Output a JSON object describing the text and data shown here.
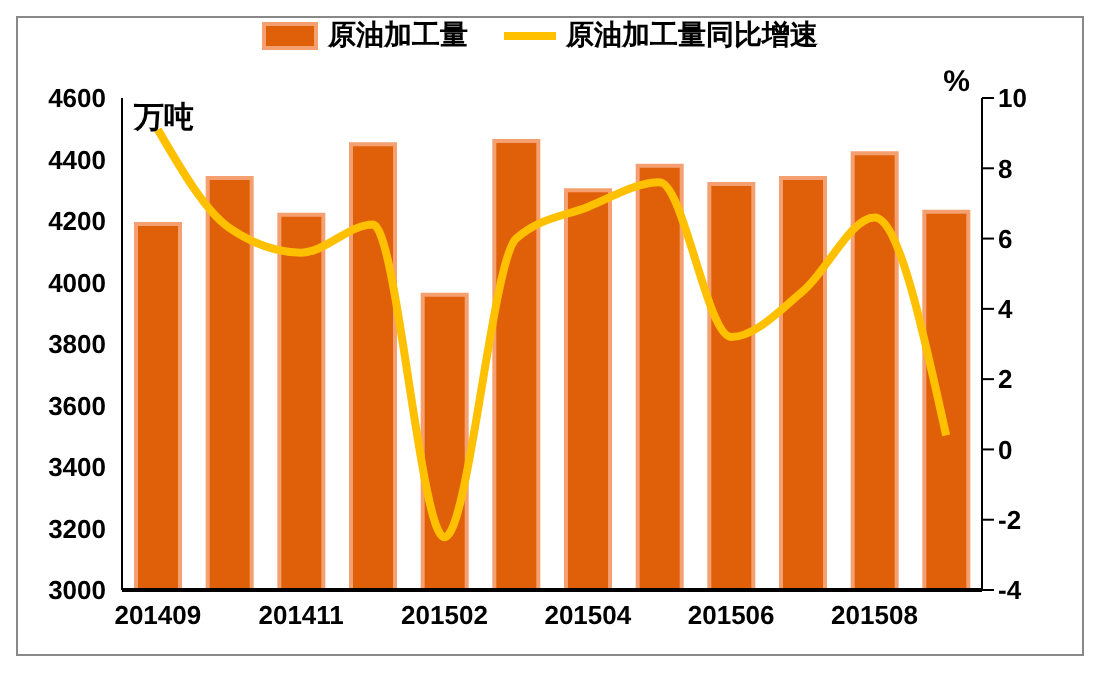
{
  "chart_data": {
    "type": "bar",
    "categories": [
      "201409",
      null,
      "201411",
      null,
      "201502",
      null,
      "201504",
      null,
      "201506",
      null,
      "201508",
      null
    ],
    "ylabel": "万吨",
    "y2label": "%",
    "series": [
      {
        "name": "原油加工量",
        "color": "#e0600a",
        "values": [
          4190,
          4340,
          4220,
          4450,
          3960,
          4460,
          4300,
          4380,
          4320,
          4340,
          4420,
          4230
        ]
      },
      {
        "name": "原油加工量同比增速",
        "type": "line",
        "axis": "y2",
        "color": "#ffc000",
        "values": [
          9.1,
          6.3,
          5.6,
          6.4,
          -2.5,
          6.0,
          6.9,
          7.6,
          3.2,
          4.5,
          6.6,
          0.4
        ]
      }
    ],
    "ylim": [
      3000,
      4600
    ],
    "yticks": [
      3000,
      3200,
      3400,
      3600,
      3800,
      4000,
      4200,
      4400,
      4600
    ],
    "y2lim": [
      -4,
      10
    ],
    "y2ticks": [
      -4,
      -2,
      0,
      2,
      4,
      6,
      8,
      10
    ],
    "legend": "top",
    "marker": "none"
  }
}
